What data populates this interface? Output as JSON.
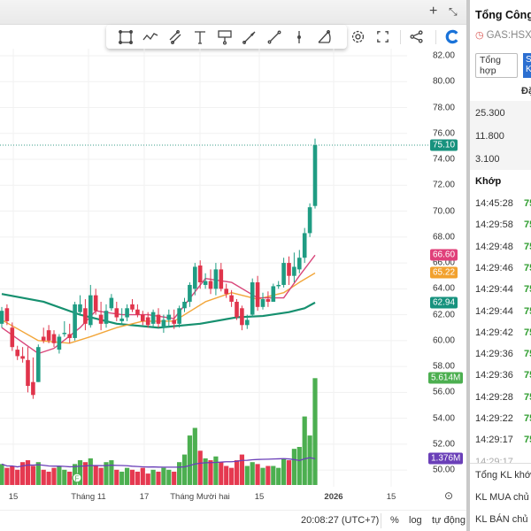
{
  "chart_header": {
    "add_icon": "plus-icon",
    "collapse_icon": "collapse-arrows-icon"
  },
  "toolbar": {
    "tools": [
      "rectangle-icon",
      "polyline-icon",
      "parallel-channel-icon",
      "text-icon",
      "callout-icon",
      "arrow-icon",
      "trend-line-icon",
      "vertical-line-icon",
      "fib-icon"
    ],
    "settings": "gear-icon",
    "fullscreen": "fullscreen-icon",
    "share": "share-icon",
    "logo": "c-logo-icon"
  },
  "price_axis": {
    "ticks": [
      "82.00",
      "80.00",
      "78.00",
      "76.00",
      "74.00",
      "72.00",
      "70.00",
      "68.00",
      "66.00",
      "64.00",
      "62.00",
      "60.00",
      "58.00",
      "56.00",
      "54.00",
      "52.00",
      "50.00"
    ],
    "labels": [
      {
        "text": "75.10",
        "color": "#17927e",
        "value": 75.1
      },
      {
        "text": "66.60",
        "color": "#e0407a",
        "value": 66.6
      },
      {
        "text": "65.22",
        "color": "#f2a12e",
        "value": 65.22
      },
      {
        "text": "62.94",
        "color": "#17927e",
        "value": 62.94
      },
      {
        "text": "5.614M",
        "color": "#4caf50",
        "volume": 5.614
      },
      {
        "text": "1.376M",
        "color": "#6a3fb8",
        "volume": 1.376
      }
    ]
  },
  "time_axis": {
    "labels": [
      "15",
      "Tháng 11",
      "17",
      "Tháng Mười hai",
      "15",
      "2026",
      "15"
    ],
    "settings_icon": "gear-icon"
  },
  "status": {
    "time": "20:08:27 (UTC+7)",
    "percent": "%",
    "log": "log",
    "auto": "tự động"
  },
  "chart_data": {
    "type": "candlestick",
    "ylim": [
      50,
      82
    ],
    "colors": {
      "up": "#1f9c83",
      "down": "#e0344b",
      "vol_up": "#4caf50",
      "vol_down": "#e53950",
      "ma_fast": "#d9467a",
      "ma_mid": "#f2a63a",
      "ma_slow": "#16906f",
      "vol_ma": "#6a3fb8"
    },
    "ohlc": [
      [
        61.3,
        62.6,
        61,
        62.3
      ],
      [
        62.5,
        62.8,
        61.2,
        61.5
      ],
      [
        61,
        61.4,
        59.2,
        59.5
      ],
      [
        59.3,
        59.6,
        58.5,
        58.8
      ],
      [
        58.8,
        59.5,
        58.3,
        58.6
      ],
      [
        58.5,
        59.5,
        56,
        56.5
      ],
      [
        56.8,
        58.7,
        55.5,
        55.8
      ],
      [
        56.8,
        59.7,
        56.8,
        59.5
      ],
      [
        60.3,
        61,
        59.8,
        60
      ],
      [
        60.8,
        61.2,
        59.8,
        60
      ],
      [
        60.5,
        60.8,
        59.5,
        59.8
      ],
      [
        59.3,
        60.5,
        59,
        60.3
      ],
      [
        60.5,
        61.5,
        60.3,
        60.6
      ],
      [
        60.5,
        61.3,
        59.8,
        60.2
      ],
      [
        60.2,
        63,
        60,
        62.8
      ],
      [
        62.2,
        63.5,
        62,
        62.8
      ],
      [
        62.5,
        63.2,
        60.8,
        61.3
      ],
      [
        61.2,
        64.3,
        61,
        63.5
      ],
      [
        63.5,
        64,
        62,
        62.3
      ],
      [
        62,
        63,
        60.8,
        61.3
      ],
      [
        61.3,
        62.8,
        61,
        62.3
      ],
      [
        62.5,
        63.6,
        62.3,
        63.3
      ],
      [
        62.5,
        63,
        61.5,
        61.8
      ],
      [
        61.5,
        62.5,
        61.2,
        61.7
      ],
      [
        61.8,
        62.8,
        61.5,
        62.5
      ],
      [
        62.8,
        63.2,
        62.2,
        62.4
      ],
      [
        62.4,
        62.8,
        61.8,
        62
      ],
      [
        62,
        62.3,
        61.2,
        61.5
      ],
      [
        61.8,
        62.2,
        61,
        61.2
      ],
      [
        61.3,
        62.4,
        61.1,
        62.2
      ],
      [
        62,
        62.5,
        61,
        61.3
      ],
      [
        61,
        62,
        60.6,
        61.6
      ],
      [
        61.6,
        62.4,
        61,
        62
      ],
      [
        61.6,
        62.4,
        60.9,
        61.3
      ],
      [
        61.3,
        62.7,
        61,
        62.5
      ],
      [
        62.5,
        63.3,
        62.2,
        63
      ],
      [
        63,
        64.5,
        62.6,
        64.3
      ],
      [
        64,
        66,
        63.5,
        65.7
      ],
      [
        65.8,
        66.2,
        64,
        64.5
      ],
      [
        64.3,
        65.2,
        64,
        64.6
      ],
      [
        64.6,
        65.5,
        63.6,
        64
      ],
      [
        64,
        66,
        63.5,
        65.5
      ],
      [
        65.5,
        66,
        63.8,
        64
      ],
      [
        64,
        64.4,
        63.3,
        63.6
      ],
      [
        63.5,
        63.9,
        62.6,
        63
      ],
      [
        63,
        63.2,
        61.6,
        61.8
      ],
      [
        62.5,
        62.7,
        60.8,
        61.2
      ],
      [
        61.2,
        62,
        60.9,
        61.6
      ],
      [
        62,
        64.8,
        61.8,
        64.5
      ],
      [
        64.5,
        65,
        62.3,
        62.6
      ],
      [
        62.6,
        63.7,
        62.4,
        63.2
      ],
      [
        63.2,
        63.8,
        62.6,
        63
      ],
      [
        63,
        64.4,
        63,
        64.2
      ],
      [
        64.2,
        64.6,
        64,
        64.3
      ],
      [
        64.3,
        66.4,
        64.1,
        66
      ],
      [
        66,
        66.5,
        64.3,
        65
      ],
      [
        65,
        66.8,
        64.5,
        65.7
      ],
      [
        65.5,
        67,
        65.2,
        66.4
      ],
      [
        66.4,
        68.7,
        66,
        68.3
      ],
      [
        68.3,
        70.6,
        68,
        70.3
      ],
      [
        70.4,
        75.6,
        70.2,
        75.1
      ]
    ],
    "volume_millions": [
      1.1,
      0.9,
      1.0,
      0.8,
      1.2,
      1.3,
      1.0,
      1.2,
      0.8,
      0.7,
      0.9,
      1.0,
      0.8,
      0.7,
      1.1,
      1.3,
      1.2,
      1.4,
      1.0,
      0.9,
      1.2,
      1.3,
      0.8,
      0.7,
      0.9,
      0.8,
      0.7,
      0.9,
      0.6,
      0.8,
      0.7,
      0.9,
      0.8,
      0.7,
      1.2,
      1.6,
      2.6,
      3.0,
      1.8,
      1.4,
      1.3,
      1.5,
      1.2,
      1.0,
      0.9,
      1.3,
      1.6,
      1.0,
      1.2,
      1.1,
      0.9,
      1.0,
      1.0,
      0.9,
      1.4,
      1.3,
      1.9,
      2.0,
      3.6,
      2.6,
      5.614
    ],
    "ma_fast": [
      [
        0,
        61
      ],
      [
        7,
        59
      ],
      [
        10,
        59.4
      ],
      [
        15,
        61
      ],
      [
        18,
        62.3
      ],
      [
        23,
        62
      ],
      [
        28,
        62
      ],
      [
        33,
        61.7
      ],
      [
        39,
        64.8
      ],
      [
        44,
        64.5
      ],
      [
        49,
        63.3
      ],
      [
        54,
        63.3
      ],
      [
        57,
        65
      ],
      [
        60,
        66.6
      ]
    ],
    "ma_mid": [
      [
        0,
        61.6
      ],
      [
        7,
        60
      ],
      [
        13,
        59.8
      ],
      [
        17,
        60.3
      ],
      [
        22,
        61
      ],
      [
        27,
        61.5
      ],
      [
        33,
        61.5
      ],
      [
        39,
        63
      ],
      [
        44,
        63.7
      ],
      [
        49,
        63.2
      ],
      [
        54,
        63.7
      ],
      [
        57,
        64.5
      ],
      [
        60,
        65.22
      ]
    ],
    "ma_slow": [
      [
        0,
        63.6
      ],
      [
        8,
        63
      ],
      [
        15,
        62
      ],
      [
        22,
        61.3
      ],
      [
        30,
        61
      ],
      [
        38,
        61.3
      ],
      [
        45,
        61.8
      ],
      [
        50,
        61.9
      ],
      [
        55,
        62.2
      ],
      [
        58,
        62.5
      ],
      [
        60,
        62.94
      ]
    ],
    "vol_ma_end": 1.376
  },
  "panel": {
    "title": "Tổng Công",
    "symbol": "GAS:HSX",
    "tabs": [
      "Tổng hợp",
      "S K"
    ],
    "col_header": "Đặ",
    "levels": [
      "25.300",
      "11.800",
      "3.100"
    ],
    "match_title": "Khớp",
    "trades": [
      {
        "time": "14:45:28",
        "price": "75"
      },
      {
        "time": "14:29:58",
        "price": "75"
      },
      {
        "time": "14:29:48",
        "price": "75"
      },
      {
        "time": "14:29:46",
        "price": "75"
      },
      {
        "time": "14:29:44",
        "price": "75"
      },
      {
        "time": "14:29:44",
        "price": "75"
      },
      {
        "time": "14:29:42",
        "price": "75"
      },
      {
        "time": "14:29:36",
        "price": "75"
      },
      {
        "time": "14:29:36",
        "price": "75"
      },
      {
        "time": "14:29:28",
        "price": "75"
      },
      {
        "time": "14:29:22",
        "price": "75"
      },
      {
        "time": "14:29:17",
        "price": "75"
      }
    ],
    "footer": [
      "Tổng KL khớp",
      "KL MUA chủ đ",
      "KL BÁN chủ đ"
    ]
  }
}
